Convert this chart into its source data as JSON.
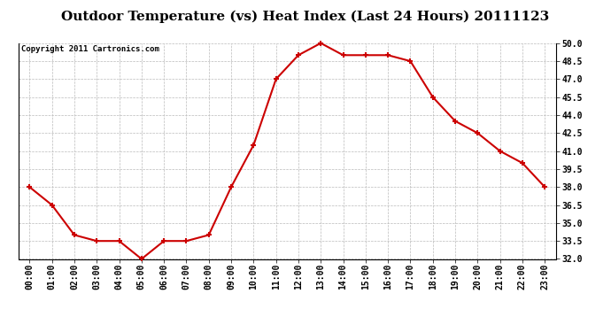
{
  "title": "Outdoor Temperature (vs) Heat Index (Last 24 Hours) 20111123",
  "copyright": "Copyright 2011 Cartronics.com",
  "x_labels": [
    "00:00",
    "01:00",
    "02:00",
    "03:00",
    "04:00",
    "05:00",
    "06:00",
    "07:00",
    "08:00",
    "09:00",
    "10:00",
    "11:00",
    "12:00",
    "13:00",
    "14:00",
    "15:00",
    "16:00",
    "17:00",
    "18:00",
    "19:00",
    "20:00",
    "21:00",
    "22:00",
    "23:00"
  ],
  "y_values": [
    38.0,
    36.5,
    34.0,
    33.5,
    33.5,
    32.0,
    33.5,
    33.5,
    34.0,
    38.0,
    41.5,
    47.0,
    49.0,
    50.0,
    49.0,
    49.0,
    49.0,
    48.5,
    45.5,
    43.5,
    42.5,
    41.0,
    40.0,
    38.0
  ],
  "line_color": "#cc0000",
  "marker": "+",
  "marker_size": 5,
  "marker_linewidth": 1.5,
  "line_width": 1.5,
  "ylim": [
    32.0,
    50.0
  ],
  "ytick_min": 32.0,
  "ytick_max": 50.0,
  "ytick_step": 1.5,
  "background_color": "#ffffff",
  "plot_bg_color": "#ffffff",
  "grid_color": "#bbbbbb",
  "title_fontsize": 11,
  "copyright_fontsize": 6.5,
  "tick_fontsize": 7
}
